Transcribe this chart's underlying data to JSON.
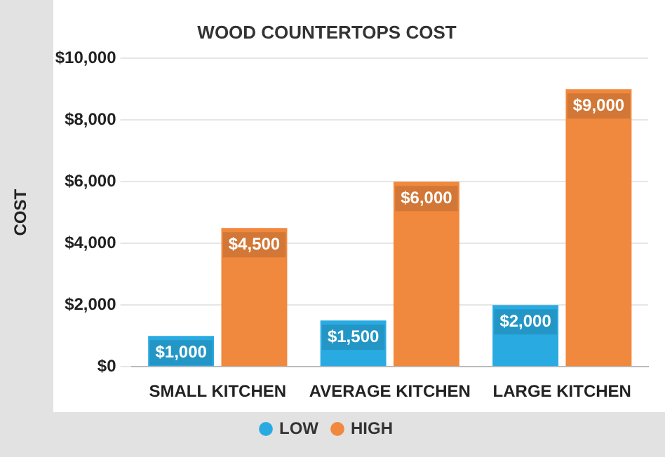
{
  "chart_data": {
    "type": "bar",
    "title": "WOOD COUNTERTOPS COST",
    "ylabel": "COST",
    "categories": [
      "SMALL KITCHEN",
      "AVERAGE KITCHEN",
      "LARGE KITCHEN"
    ],
    "series": [
      {
        "name": "LOW",
        "color": "#29abe2",
        "values": [
          1000,
          1500,
          2000
        ],
        "value_labels": [
          "$1,000",
          "$1,500",
          "$2,000"
        ]
      },
      {
        "name": "HIGH",
        "color": "#f0883e",
        "values": [
          4500,
          6000,
          9000
        ],
        "value_labels": [
          "$4,500",
          "$6,000",
          "$9,000"
        ]
      }
    ],
    "ylim": [
      0,
      10000
    ],
    "yticks": [
      {
        "value": 0,
        "label": "$0"
      },
      {
        "value": 2000,
        "label": "$2,000"
      },
      {
        "value": 4000,
        "label": "$4,000"
      },
      {
        "value": 6000,
        "label": "$6,000"
      },
      {
        "value": 8000,
        "label": "$8,000"
      },
      {
        "value": 10000,
        "label": "$10,000"
      }
    ],
    "grid": "y",
    "legend": "bottom"
  }
}
